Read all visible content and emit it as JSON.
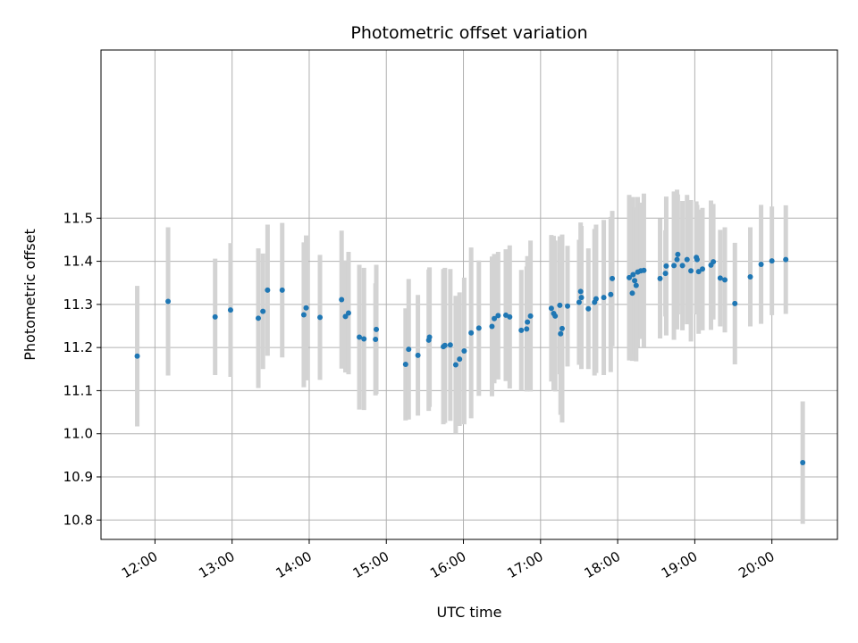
{
  "chart_data": {
    "type": "scatter",
    "title": "Photometric offset variation",
    "xlabel": "UTC time",
    "ylabel": "Photometric offset",
    "xlim": [
      11.3,
      20.85
    ],
    "ylim": [
      10.755,
      11.89
    ],
    "grid": true,
    "x_ticks": [
      {
        "value": 12,
        "label": "12:00"
      },
      {
        "value": 13,
        "label": "13:00"
      },
      {
        "value": 14,
        "label": "14:00"
      },
      {
        "value": 15,
        "label": "15:00"
      },
      {
        "value": 16,
        "label": "16:00"
      },
      {
        "value": 17,
        "label": "17:00"
      },
      {
        "value": 18,
        "label": "18:00"
      },
      {
        "value": 19,
        "label": "19:00"
      },
      {
        "value": 20,
        "label": "20:00"
      }
    ],
    "y_ticks": [
      {
        "value": 10.8,
        "label": "10.8"
      },
      {
        "value": 10.9,
        "label": "10.9"
      },
      {
        "value": 11.0,
        "label": "11.0"
      },
      {
        "value": 11.1,
        "label": "11.1"
      },
      {
        "value": 11.2,
        "label": "11.2"
      },
      {
        "value": 11.3,
        "label": "11.3"
      },
      {
        "value": 11.4,
        "label": "11.4"
      },
      {
        "value": 11.5,
        "label": "11.5"
      }
    ],
    "colors": {
      "point": "#1f77b4",
      "errorbar": "#d3d3d3",
      "grid": "#b0b0b0",
      "axes": "#000000"
    },
    "series": [
      {
        "name": "offset",
        "x": [
          11.77,
          12.17,
          12.78,
          12.98,
          13.34,
          13.4,
          13.46,
          13.65,
          13.93,
          13.96,
          14.14,
          14.42,
          14.47,
          14.51,
          14.65,
          14.71,
          14.86,
          14.87,
          15.25,
          15.29,
          15.41,
          15.55,
          15.56,
          15.74,
          15.76,
          15.83,
          15.9,
          15.95,
          16.01,
          16.1,
          16.2,
          16.37,
          16.4,
          16.45,
          16.55,
          16.6,
          16.75,
          16.82,
          16.83,
          16.87,
          17.14,
          17.17,
          17.19,
          17.25,
          17.26,
          17.28,
          17.35,
          17.5,
          17.52,
          17.53,
          17.62,
          17.7,
          17.72,
          17.82,
          17.91,
          17.93,
          18.15,
          18.19,
          18.2,
          18.22,
          18.24,
          18.26,
          18.3,
          18.34,
          18.55,
          18.62,
          18.63,
          18.73,
          18.77,
          18.78,
          18.84,
          18.9,
          18.95,
          19.02,
          19.03,
          19.05,
          19.1,
          19.21,
          19.24,
          19.33,
          19.39,
          19.52,
          19.72,
          19.86,
          20.0,
          20.18,
          20.4
        ],
        "y": [
          11.18,
          11.307,
          11.271,
          11.287,
          11.268,
          11.284,
          11.333,
          11.333,
          11.276,
          11.292,
          11.27,
          11.311,
          11.272,
          11.28,
          11.224,
          11.22,
          11.219,
          11.242,
          11.161,
          11.196,
          11.182,
          11.217,
          11.224,
          11.202,
          11.205,
          11.206,
          11.16,
          11.173,
          11.192,
          11.234,
          11.245,
          11.249,
          11.267,
          11.274,
          11.275,
          11.271,
          11.24,
          11.243,
          11.259,
          11.273,
          11.291,
          11.279,
          11.273,
          11.298,
          11.232,
          11.244,
          11.296,
          11.305,
          11.33,
          11.316,
          11.29,
          11.305,
          11.313,
          11.316,
          11.323,
          11.36,
          11.362,
          11.326,
          11.369,
          11.355,
          11.344,
          11.375,
          11.378,
          11.379,
          11.36,
          11.372,
          11.389,
          11.39,
          11.404,
          11.416,
          11.39,
          11.404,
          11.378,
          11.409,
          11.404,
          11.376,
          11.382,
          11.391,
          11.399,
          11.361,
          11.357,
          11.302,
          11.364,
          11.393,
          11.401,
          11.404,
          10.933
        ],
        "yerr": [
          0.163,
          0.172,
          0.135,
          0.155,
          0.162,
          0.134,
          0.152,
          0.156,
          0.168,
          0.168,
          0.145,
          0.16,
          0.13,
          0.142,
          0.168,
          0.165,
          0.13,
          0.15,
          0.13,
          0.163,
          0.14,
          0.164,
          0.162,
          0.18,
          0.18,
          0.176,
          0.16,
          0.155,
          0.17,
          0.198,
          0.157,
          0.162,
          0.15,
          0.148,
          0.153,
          0.166,
          0.14,
          0.145,
          0.153,
          0.175,
          0.17,
          0.18,
          0.175,
          0.16,
          0.188,
          0.218,
          0.14,
          0.145,
          0.16,
          0.166,
          0.14,
          0.17,
          0.172,
          0.18,
          0.18,
          0.157,
          0.192,
          0.157,
          0.18,
          0.17,
          0.176,
          0.174,
          0.158,
          0.178,
          0.139,
          0.1,
          0.161,
          0.172,
          0.162,
          0.139,
          0.15,
          0.15,
          0.164,
          0.13,
          0.127,
          0.144,
          0.142,
          0.15,
          0.134,
          0.112,
          0.122,
          0.141,
          0.115,
          0.138,
          0.126,
          0.126,
          0.142
        ]
      }
    ]
  }
}
